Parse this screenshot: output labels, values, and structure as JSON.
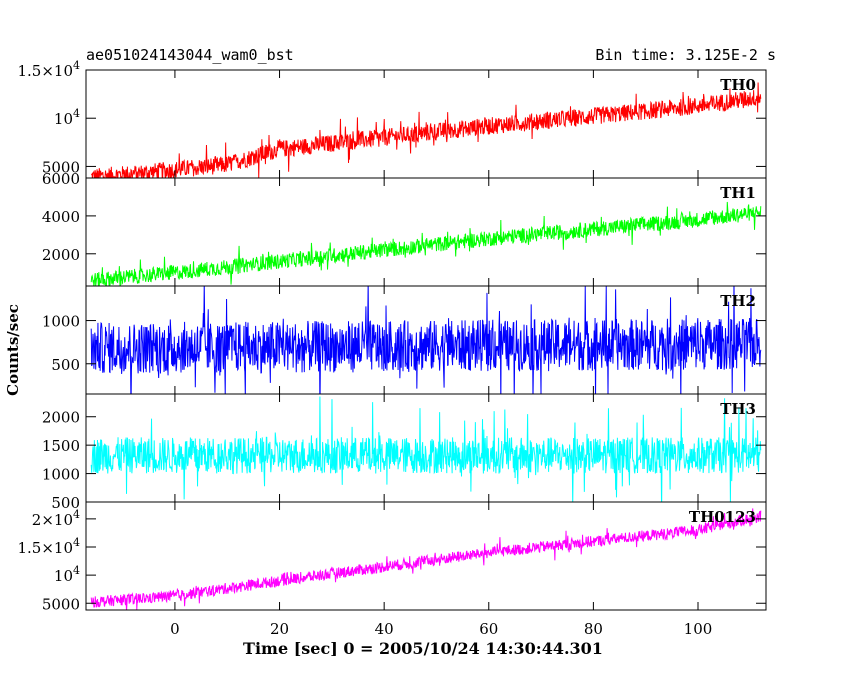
{
  "header": {
    "title": "ae051024143044_wam0_bst",
    "bin_time": "Bin time: 3.125E-2 s"
  },
  "chart_data": {
    "type": "line",
    "title": "ae051024143044_wam0_bst",
    "xlabel": "Time [sec] 0 = 2005/10/24 14:30:44.301",
    "ylabel": "Counts/sec",
    "xlim": [
      -17,
      113
    ],
    "x_ticks": [
      "0",
      "20",
      "40",
      "60",
      "80",
      "100"
    ],
    "x_tick_values": [
      0,
      20,
      40,
      60,
      80,
      100
    ],
    "x_range": [
      -16,
      112
    ],
    "grid": false,
    "panels": [
      {
        "name": "TH0",
        "color": "#ff0000",
        "ylim": [
          3800,
          15000
        ],
        "ticks": [
          {
            "v": 5000,
            "label": "5000"
          },
          {
            "v": 10000,
            "label": "10^4"
          },
          {
            "v": 15000,
            "label": "1.5×10^4"
          }
        ],
        "trend": [
          [
            -16,
            3900
          ],
          [
            -5,
            4400
          ],
          [
            10,
            5200
          ],
          [
            20,
            6800
          ],
          [
            40,
            8000
          ],
          [
            60,
            9200
          ],
          [
            80,
            10200
          ],
          [
            100,
            11300
          ],
          [
            112,
            12200
          ]
        ],
        "spread": 900,
        "spike": 1800
      },
      {
        "name": "TH1",
        "color": "#00ff00",
        "ylim": [
          300,
          6000
        ],
        "ticks": [
          {
            "v": 2000,
            "label": "2000"
          },
          {
            "v": 4000,
            "label": "4000"
          },
          {
            "v": 6000,
            "label": "6000"
          }
        ],
        "trend": [
          [
            -16,
            600
          ],
          [
            0,
            1000
          ],
          [
            20,
            1600
          ],
          [
            40,
            2200
          ],
          [
            60,
            2800
          ],
          [
            80,
            3300
          ],
          [
            100,
            3800
          ],
          [
            112,
            4200
          ]
        ],
        "spread": 400,
        "spike": 800
      },
      {
        "name": "TH2",
        "color": "#0000ff",
        "ylim": [
          150,
          1400
        ],
        "ticks": [
          {
            "v": 500,
            "label": "500"
          },
          {
            "v": 1000,
            "label": "1000"
          }
        ],
        "trend": [
          [
            -16,
            680
          ],
          [
            112,
            730
          ]
        ],
        "spread": 300,
        "spike": 600
      },
      {
        "name": "TH3",
        "color": "#00ffff",
        "ylim": [
          500,
          2400
        ],
        "ticks": [
          {
            "v": 500,
            "label": "500"
          },
          {
            "v": 1000,
            "label": "1000"
          },
          {
            "v": 1500,
            "label": "1500"
          },
          {
            "v": 2000,
            "label": "2000"
          }
        ],
        "trend": [
          [
            -16,
            1320
          ],
          [
            112,
            1320
          ]
        ],
        "spread": 320,
        "spike": 800
      },
      {
        "name": "TH0123",
        "color": "#ff00ff",
        "ylim": [
          3800,
          23000
        ],
        "ticks": [
          {
            "v": 5000,
            "label": "5000"
          },
          {
            "v": 10000,
            "label": "10^4"
          },
          {
            "v": 15000,
            "label": "1.5×10^4"
          },
          {
            "v": 20000,
            "label": "2×10^4"
          }
        ],
        "trend": [
          [
            -16,
            5200
          ],
          [
            0,
            6300
          ],
          [
            20,
            9000
          ],
          [
            40,
            11500
          ],
          [
            60,
            14000
          ],
          [
            80,
            16000
          ],
          [
            100,
            18000
          ],
          [
            112,
            20500
          ]
        ],
        "spread": 1000,
        "spike": 2000
      }
    ]
  }
}
